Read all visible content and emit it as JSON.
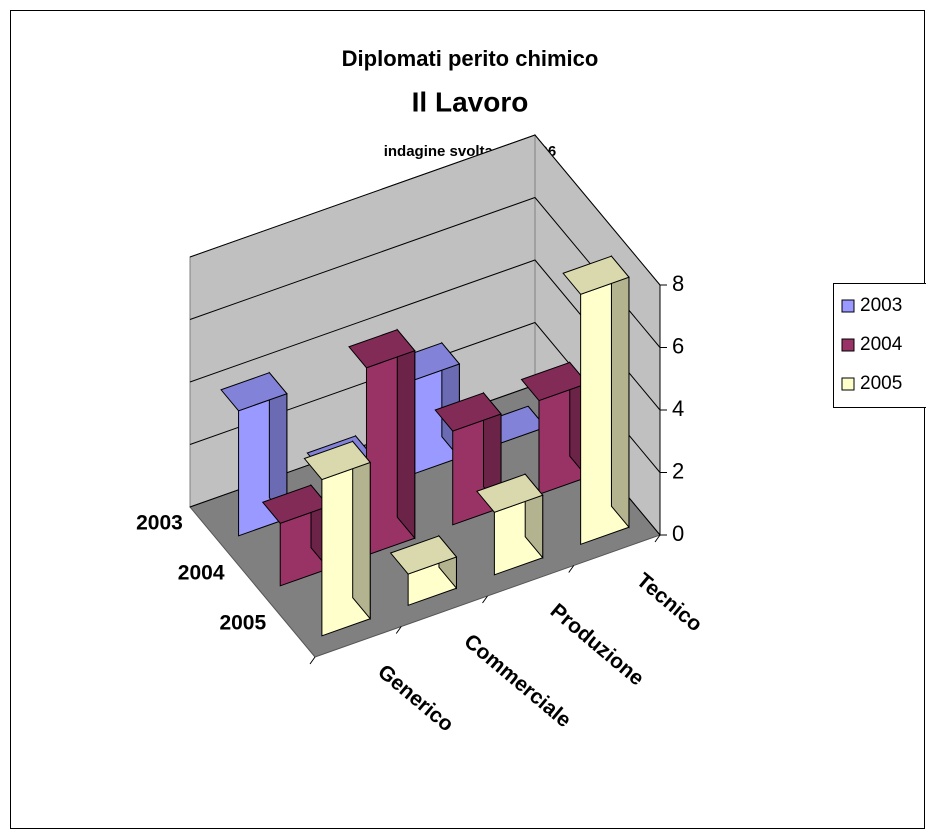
{
  "chart_data": {
    "type": "bar3d",
    "title": "Diplomati perito chimico",
    "subtitle": "Il Lavoro",
    "annotation": "indagine svolta nel 2006",
    "categories": [
      "Generico",
      "Commerciale",
      "Produzione",
      "Tecnico"
    ],
    "series": [
      {
        "name": "2003",
        "color": "#9999ff",
        "values": [
          4,
          1,
          3,
          0
        ]
      },
      {
        "name": "2004",
        "color": "#993366",
        "values": [
          2,
          6,
          3,
          3
        ]
      },
      {
        "name": "2005",
        "color": "#ffffcc",
        "values": [
          5,
          1,
          2,
          8
        ]
      }
    ],
    "ylim": [
      0,
      8
    ],
    "yticks": [
      0,
      2,
      4,
      6,
      8
    ],
    "grid": true,
    "legend": "right"
  }
}
